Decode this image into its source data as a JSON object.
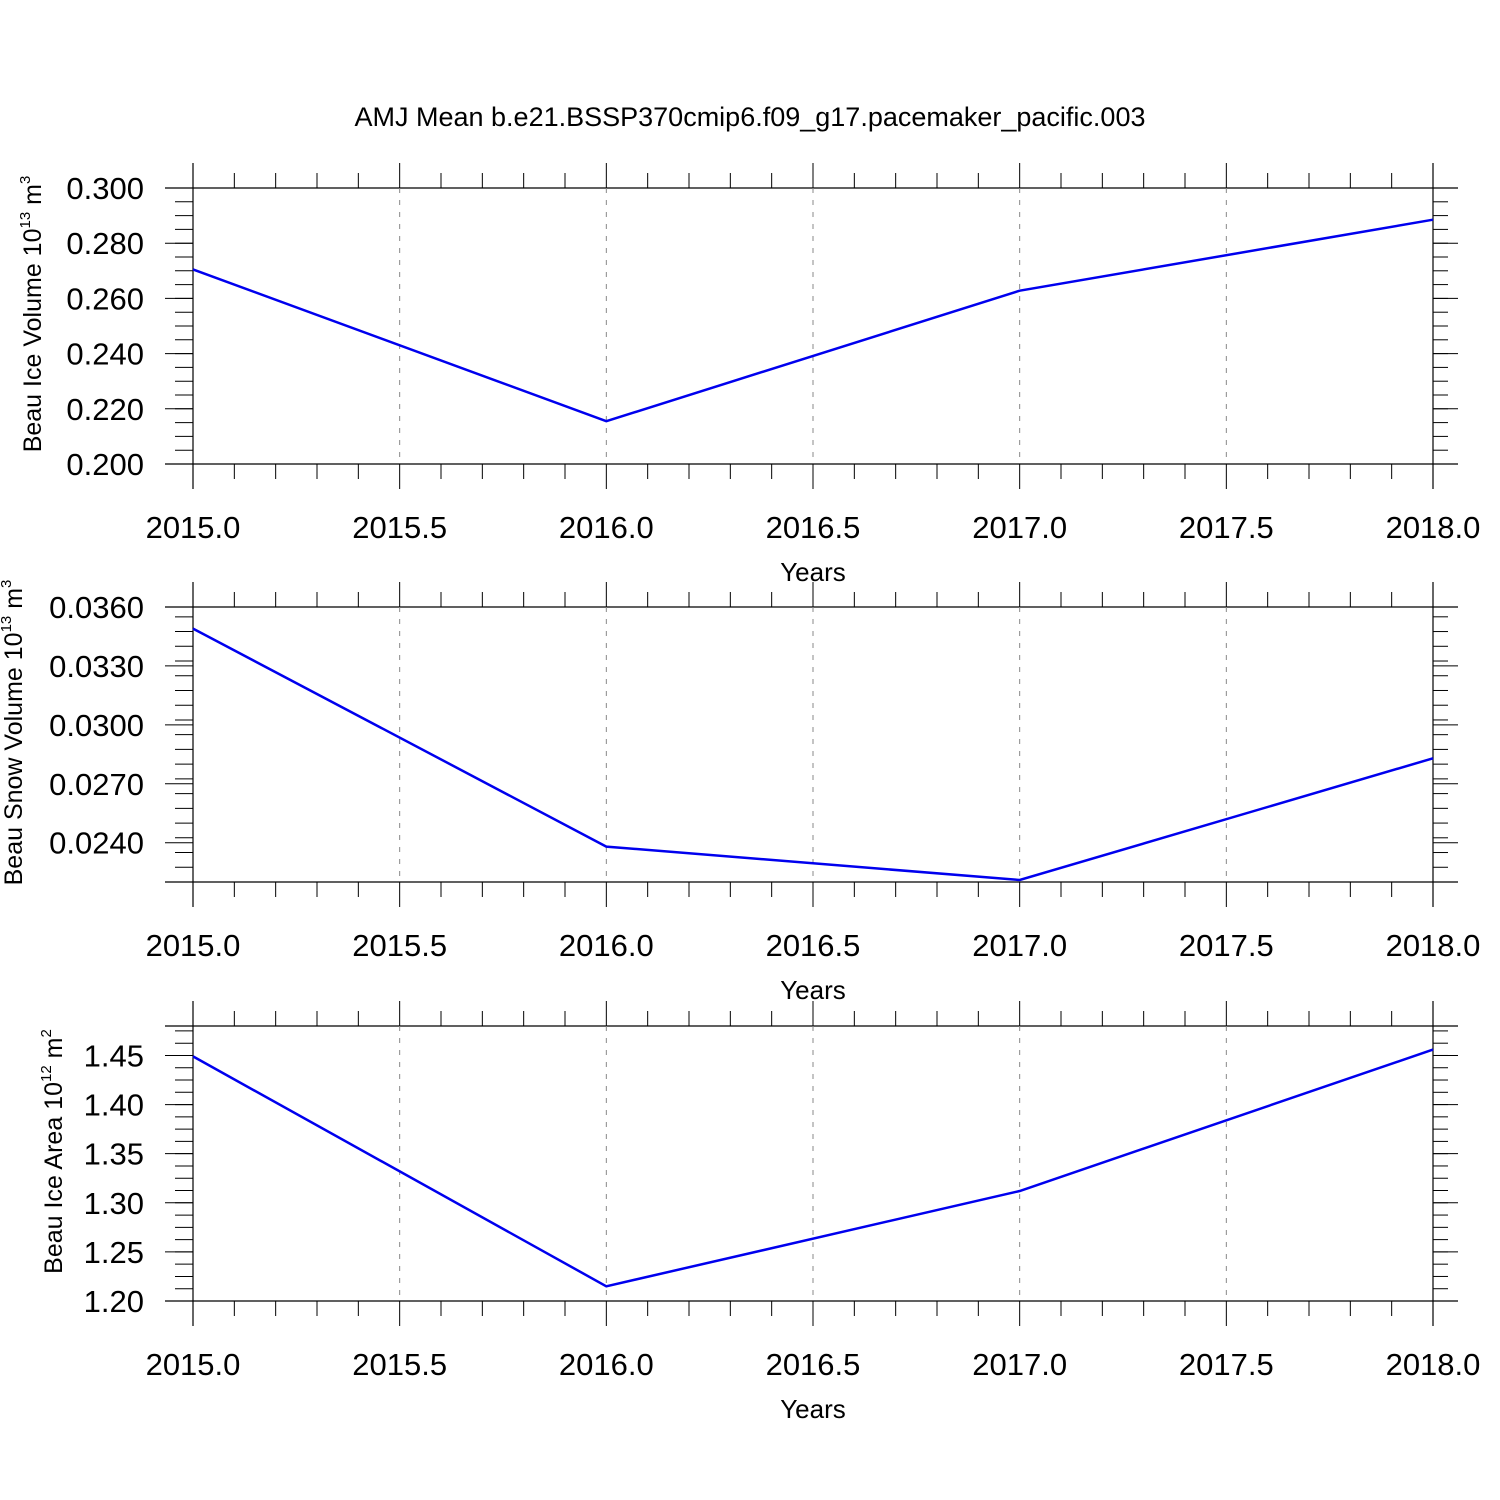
{
  "title": "AMJ Mean b.e21.BSSP370cmip6.f09_g17.pacemaker_pacific.003",
  "line_color": "#0000ee",
  "chart_data": [
    {
      "type": "line",
      "title": "",
      "xlabel": "Years",
      "ylabel": {
        "prefix": "Beau Ice Volume 10",
        "exp": "13",
        "unit": " m",
        "unit_exp": "3"
      },
      "x": [
        2015,
        2016,
        2017,
        2018
      ],
      "series": [
        {
          "values": [
            0.2705,
            0.2155,
            0.2628,
            0.2885
          ]
        }
      ],
      "xlim": [
        2015,
        2018
      ],
      "ylim": [
        0.2,
        0.3
      ],
      "xticks": [
        "2015.0",
        "2015.5",
        "2016.0",
        "2016.5",
        "2017.0",
        "2017.5",
        "2018.0"
      ],
      "yticks": [
        "0.200",
        "0.220",
        "0.240",
        "0.260",
        "0.280",
        "0.300"
      ],
      "grid": "vertical-dashed"
    },
    {
      "type": "line",
      "title": "",
      "xlabel": "Years",
      "ylabel": {
        "prefix": "Beau Snow Volume 10",
        "exp": "13",
        "unit": " m",
        "unit_exp": "3"
      },
      "x": [
        2015,
        2016,
        2017,
        2018
      ],
      "series": [
        {
          "values": [
            0.0349,
            0.0238,
            0.0221,
            0.0283
          ]
        }
      ],
      "xlim": [
        2015,
        2018
      ],
      "ylim": [
        0.022,
        0.036
      ],
      "xticks": [
        "2015.0",
        "2015.5",
        "2016.0",
        "2016.5",
        "2017.0",
        "2017.5",
        "2018.0"
      ],
      "yticks": [
        "0.0240",
        "0.0270",
        "0.0300",
        "0.0330",
        "0.0360"
      ],
      "grid": "vertical-dashed"
    },
    {
      "type": "line",
      "title": "",
      "xlabel": "Years",
      "ylabel": {
        "prefix": "Beau Ice Area 10",
        "exp": "12",
        "unit": " m",
        "unit_exp": "2"
      },
      "x": [
        2015,
        2016,
        2017,
        2018
      ],
      "series": [
        {
          "values": [
            1.449,
            1.215,
            1.312,
            1.456
          ]
        }
      ],
      "xlim": [
        2015,
        2018
      ],
      "ylim": [
        1.2,
        1.48
      ],
      "xticks": [
        "2015.0",
        "2015.5",
        "2016.0",
        "2016.5",
        "2017.0",
        "2017.5",
        "2018.0"
      ],
      "yticks": [
        "1.20",
        "1.25",
        "1.30",
        "1.35",
        "1.40",
        "1.45"
      ],
      "grid": "vertical-dashed"
    }
  ]
}
